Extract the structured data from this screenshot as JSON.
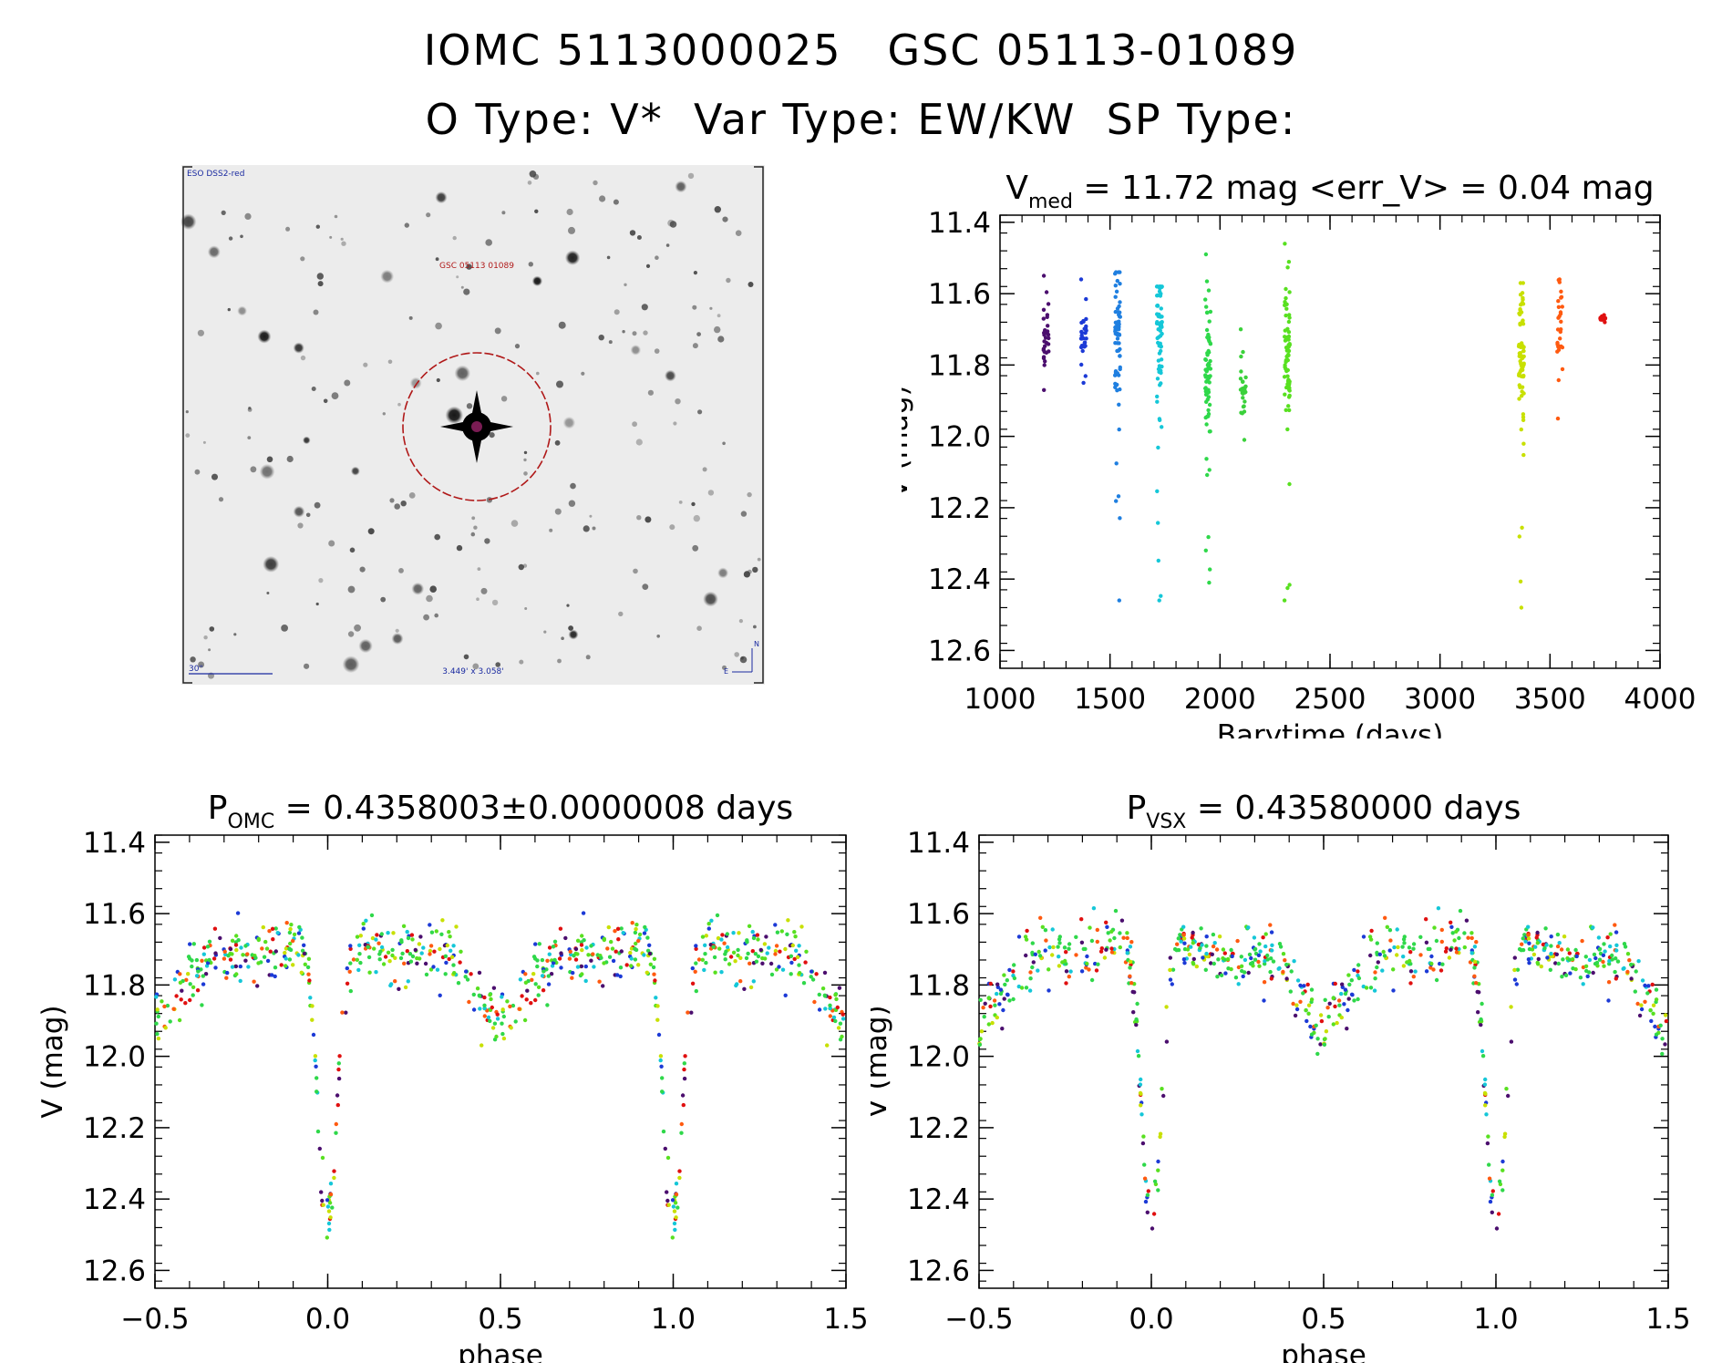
{
  "header": {
    "line1": "IOMC 5113000025   GSC 05113-01089",
    "line2": "O Type: V*  Var Type: EW/KW  SP Type:"
  },
  "finder_chart": {
    "survey_label": "ESO DSS2-red",
    "target_label": "GSC 05113 01089",
    "scale_bar_label": "30\"",
    "fov_label": "3.449' x 3.058'",
    "compass_n": "N",
    "compass_e": "E"
  },
  "chart_data": [
    {
      "type": "scatter",
      "title_main": "V",
      "title_sub": "med",
      "title_rest": " = 11.72 mag <err_V> = 0.04 mag",
      "xlabel": "Barytime (days)",
      "ylabel": "V (mag)",
      "xlim": [
        1000,
        4000
      ],
      "ylim": [
        12.65,
        11.38
      ],
      "xticks": [
        1000,
        1500,
        2000,
        2500,
        3000,
        3500,
        4000
      ],
      "yticks": [
        11.4,
        11.6,
        11.8,
        12.0,
        12.2,
        12.4,
        12.6
      ],
      "groups": [
        {
          "x": 1210,
          "color": "#4b0e6e",
          "ymin": 11.55,
          "ymax": 11.87,
          "base": 11.71
        },
        {
          "x": 1380,
          "color": "#1c3ad6",
          "ymin": 11.56,
          "ymax": 11.85,
          "base": 11.71
        },
        {
          "x": 1535,
          "color": "#1f7fe0",
          "ymin": 11.54,
          "ymax": 12.46,
          "base": 11.7
        },
        {
          "x": 1725,
          "color": "#15c7d8",
          "ymin": 11.58,
          "ymax": 12.46,
          "base": 11.7
        },
        {
          "x": 1945,
          "color": "#2fd84a",
          "ymin": 11.49,
          "ymax": 12.41,
          "base": 11.8
        },
        {
          "x": 2105,
          "color": "#3bd13b",
          "ymin": 11.7,
          "ymax": 12.01,
          "base": 11.86
        },
        {
          "x": 2305,
          "color": "#58e020",
          "ymin": 11.46,
          "ymax": 12.46,
          "base": 11.75
        },
        {
          "x": 3370,
          "color": "#c8e000",
          "ymin": 11.57,
          "ymax": 12.48,
          "base": 11.75
        },
        {
          "x": 3545,
          "color": "#ff5a10",
          "ymin": 11.56,
          "ymax": 11.95,
          "base": 11.7
        },
        {
          "x": 3740,
          "color": "#e01010",
          "ymin": 11.66,
          "ymax": 11.68,
          "base": 11.67
        }
      ]
    },
    {
      "type": "scatter",
      "title_main": "P",
      "title_sub": "OMC",
      "title_rest": " = 0.4358003±0.0000008 days",
      "xlabel": "phase",
      "ylabel": "V (mag)",
      "xlim": [
        -0.5,
        1.5
      ],
      "ylim": [
        12.65,
        11.38
      ],
      "xticks": [
        -0.5,
        0.0,
        0.5,
        1.0,
        1.5
      ],
      "xticklabels": [
        "−0.5",
        "0.0",
        "0.5",
        "1.0",
        "1.5"
      ],
      "yticks": [
        11.4,
        11.6,
        11.8,
        12.0,
        12.2,
        12.4,
        12.6
      ],
      "model": {
        "max_mag": 11.66,
        "primary_depth": 0.8,
        "secondary_depth": 0.24,
        "scatter": 0.04
      }
    },
    {
      "type": "scatter",
      "title_main": "P",
      "title_sub": "VSX",
      "title_rest": " = 0.43580000 days",
      "xlabel": "phase",
      "ylabel": "V (mag)",
      "xlim": [
        -0.5,
        1.5
      ],
      "ylim": [
        12.65,
        11.38
      ],
      "xticks": [
        -0.5,
        0.0,
        0.5,
        1.0,
        1.5
      ],
      "xticklabels": [
        "−0.5",
        "0.0",
        "0.5",
        "1.0",
        "1.5"
      ],
      "yticks": [
        11.4,
        11.6,
        11.8,
        12.0,
        12.2,
        12.4,
        12.6
      ],
      "model": {
        "max_mag": 11.66,
        "primary_depth": 0.8,
        "secondary_depth": 0.24,
        "scatter": 0.04
      }
    }
  ],
  "colors": {
    "phase_palette": [
      "#2fd84a",
      "#58e020",
      "#15c7d8",
      "#1c3ad6",
      "#ff5a10",
      "#e01010",
      "#c8e000",
      "#4b0e6e"
    ]
  }
}
